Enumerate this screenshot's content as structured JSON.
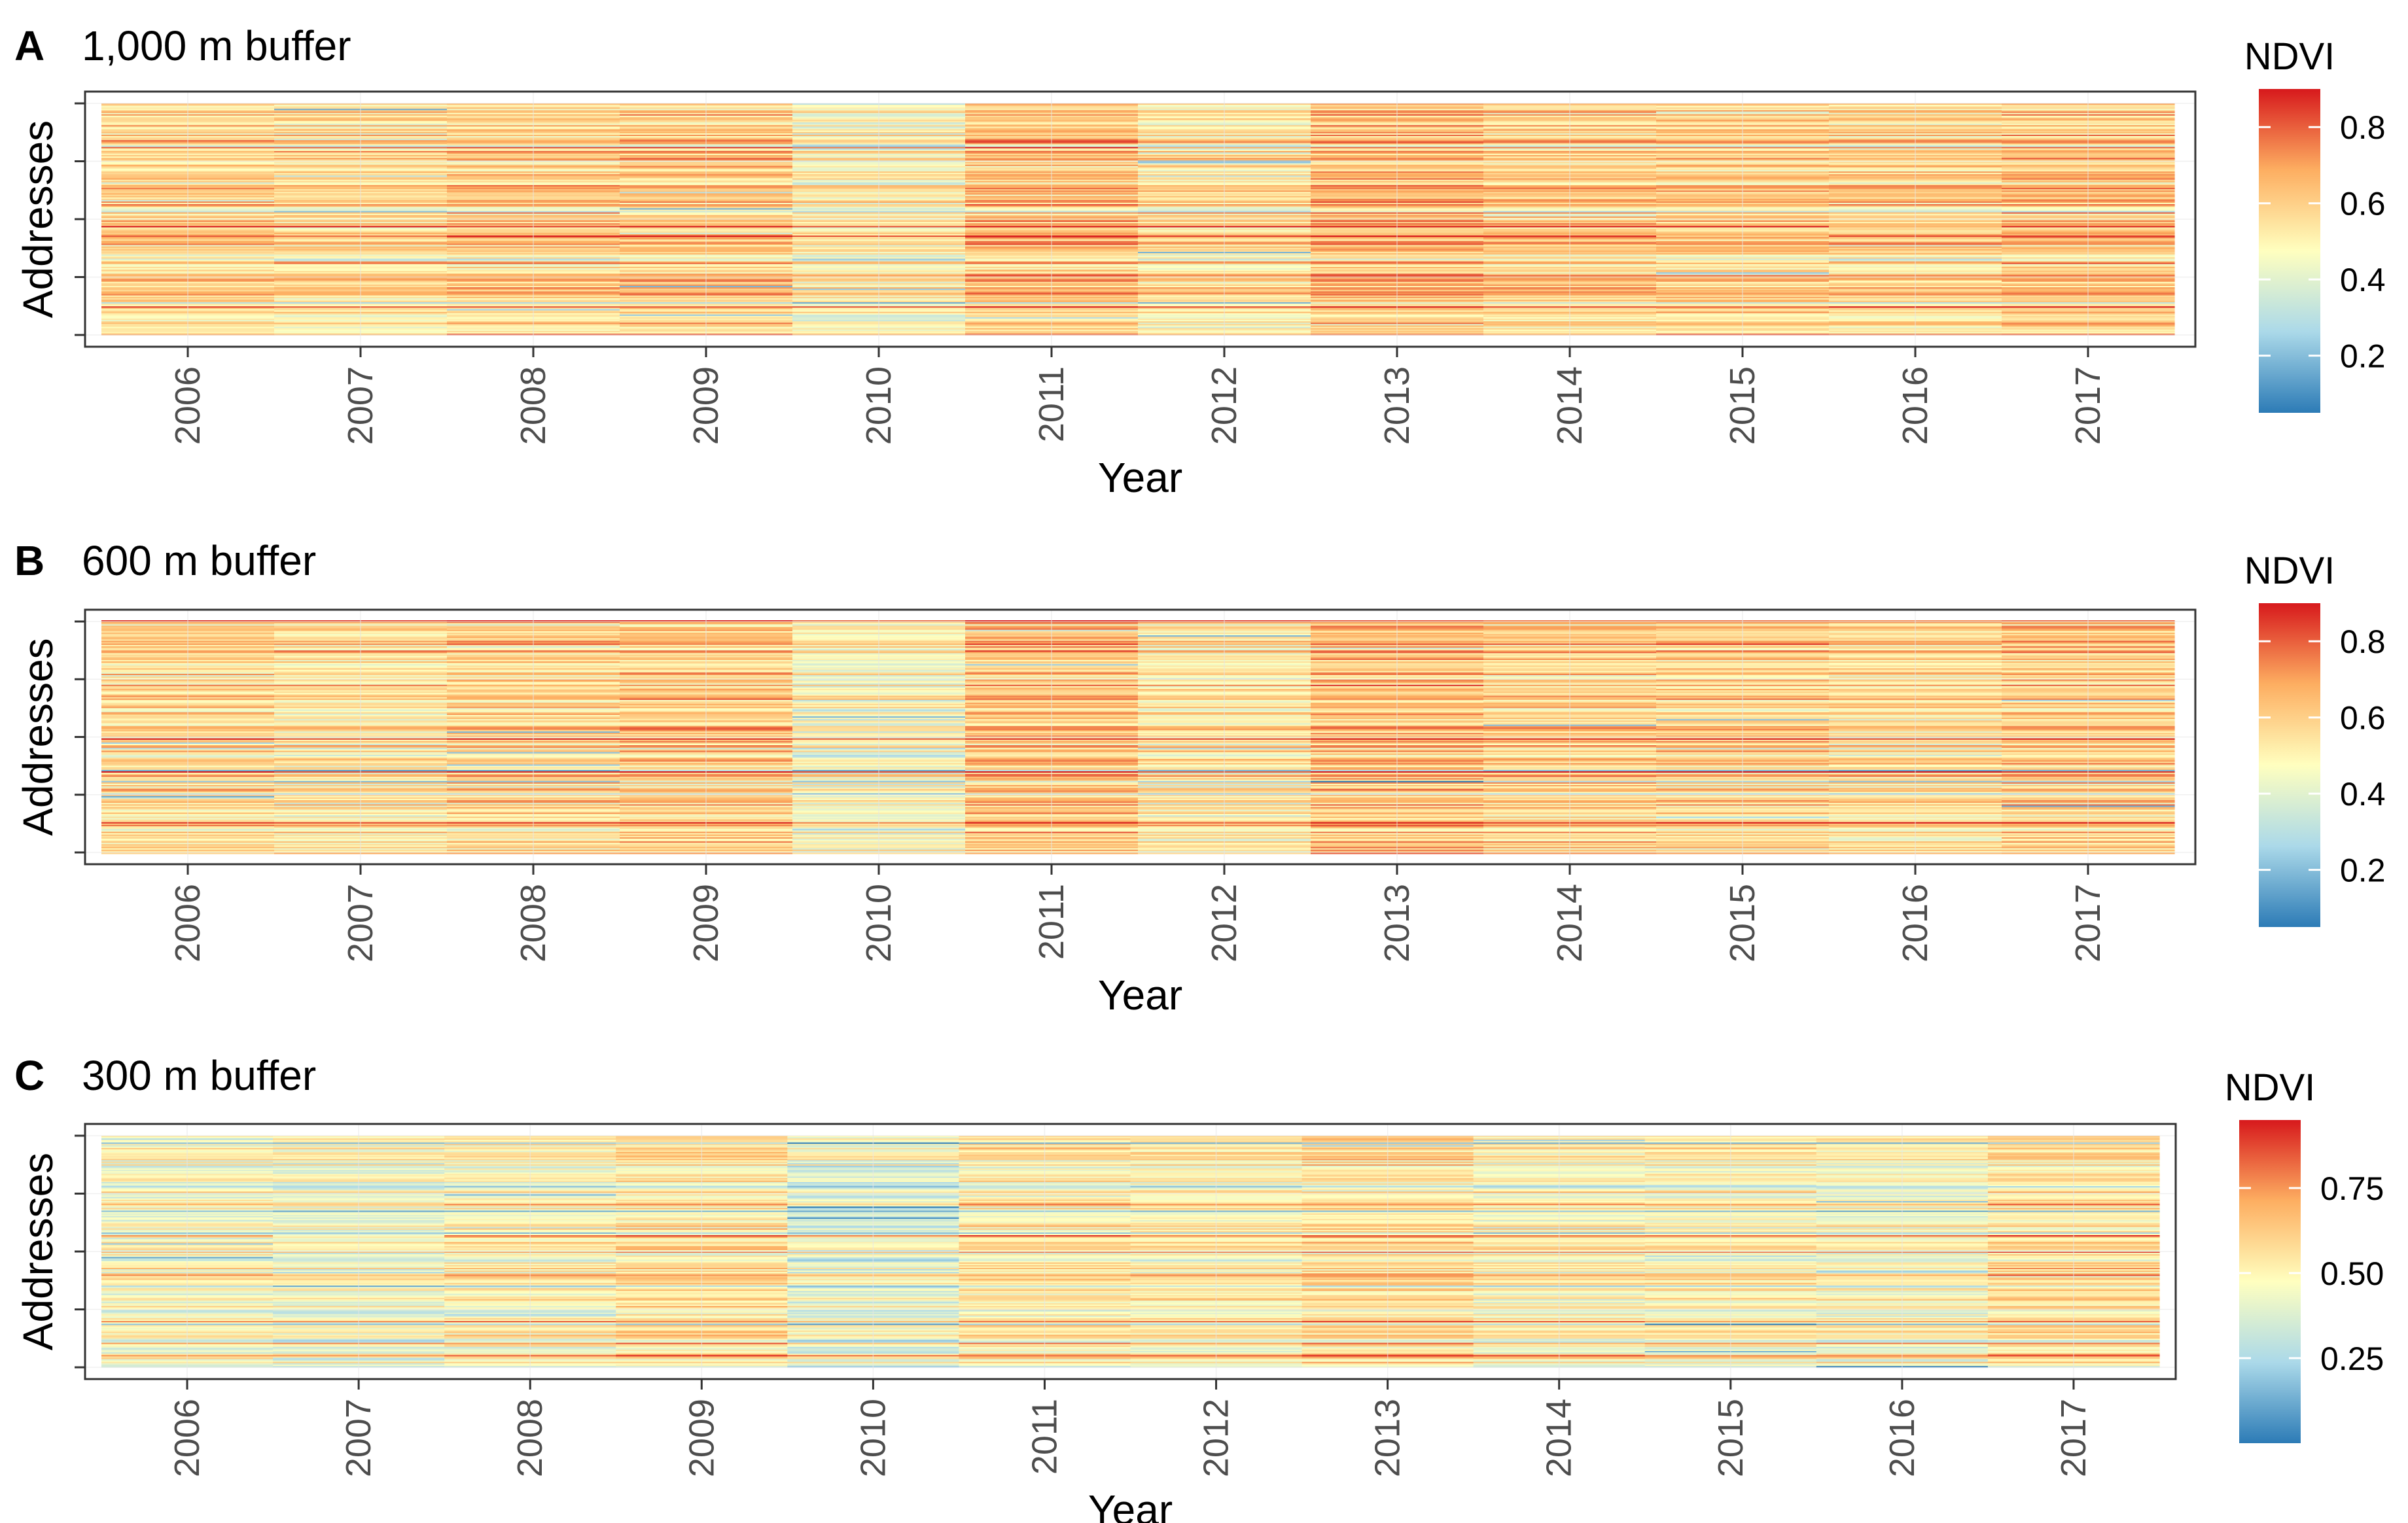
{
  "figure": {
    "panels": [
      {
        "letter": "A",
        "title": "1,000 m buffer",
        "legend_title": "NDVI"
      },
      {
        "letter": "B",
        "title": "600 m buffer",
        "legend_title": "NDVI"
      },
      {
        "letter": "C",
        "title": "300 m buffer",
        "legend_title": "NDVI"
      }
    ]
  },
  "chart_data": [
    {
      "type": "heatmap",
      "title": "1,000 m buffer",
      "panel_label": "A",
      "xlabel": "Year",
      "ylabel": "Addresses",
      "categories": [
        "2006",
        "2007",
        "2008",
        "2009",
        "2010",
        "2011",
        "2012",
        "2013",
        "2014",
        "2015",
        "2016",
        "2017"
      ],
      "y_tick_labels": [],
      "year_mean_ndvi": [
        0.58,
        0.56,
        0.59,
        0.61,
        0.5,
        0.63,
        0.55,
        0.64,
        0.6,
        0.6,
        0.58,
        0.62
      ],
      "colorbar": {
        "title": "NDVI",
        "range": [
          0.05,
          0.9
        ],
        "ticks": [
          0.2,
          0.4,
          0.6,
          0.8
        ],
        "tick_labels": [
          "0.2",
          "0.4",
          "0.6",
          "0.8"
        ]
      },
      "colormap": [
        "#2c7bb6",
        "#abd9e9",
        "#ffffbf",
        "#fdae61",
        "#d7191c"
      ],
      "legend_position": "right",
      "grid": true
    },
    {
      "type": "heatmap",
      "title": "600 m buffer",
      "panel_label": "B",
      "xlabel": "Year",
      "ylabel": "Addresses",
      "categories": [
        "2006",
        "2007",
        "2008",
        "2009",
        "2010",
        "2011",
        "2012",
        "2013",
        "2014",
        "2015",
        "2016",
        "2017"
      ],
      "y_tick_labels": [],
      "year_mean_ndvi": [
        0.56,
        0.54,
        0.57,
        0.6,
        0.47,
        0.62,
        0.53,
        0.63,
        0.58,
        0.58,
        0.55,
        0.6
      ],
      "colorbar": {
        "title": "NDVI",
        "range": [
          0.05,
          0.9
        ],
        "ticks": [
          0.2,
          0.4,
          0.6,
          0.8
        ],
        "tick_labels": [
          "0.2",
          "0.4",
          "0.6",
          "0.8"
        ]
      },
      "colormap": [
        "#2c7bb6",
        "#abd9e9",
        "#ffffbf",
        "#fdae61",
        "#d7191c"
      ],
      "legend_position": "right",
      "grid": true
    },
    {
      "type": "heatmap",
      "title": "300 m buffer",
      "panel_label": "C",
      "xlabel": "Year",
      "ylabel": "Addresses",
      "categories": [
        "2006",
        "2007",
        "2008",
        "2009",
        "2010",
        "2011",
        "2012",
        "2013",
        "2014",
        "2015",
        "2016",
        "2017"
      ],
      "y_tick_labels": [],
      "year_mean_ndvi": [
        0.48,
        0.45,
        0.5,
        0.55,
        0.42,
        0.53,
        0.52,
        0.57,
        0.5,
        0.5,
        0.48,
        0.56
      ],
      "colorbar": {
        "title": "NDVI",
        "range": [
          0.0,
          0.95
        ],
        "ticks": [
          0.25,
          0.5,
          0.75
        ],
        "tick_labels": [
          "0.25",
          "0.50",
          "0.75"
        ]
      },
      "colormap": [
        "#2c7bb6",
        "#abd9e9",
        "#ffffbf",
        "#fdae61",
        "#d7191c"
      ],
      "legend_position": "right",
      "grid": true
    }
  ]
}
